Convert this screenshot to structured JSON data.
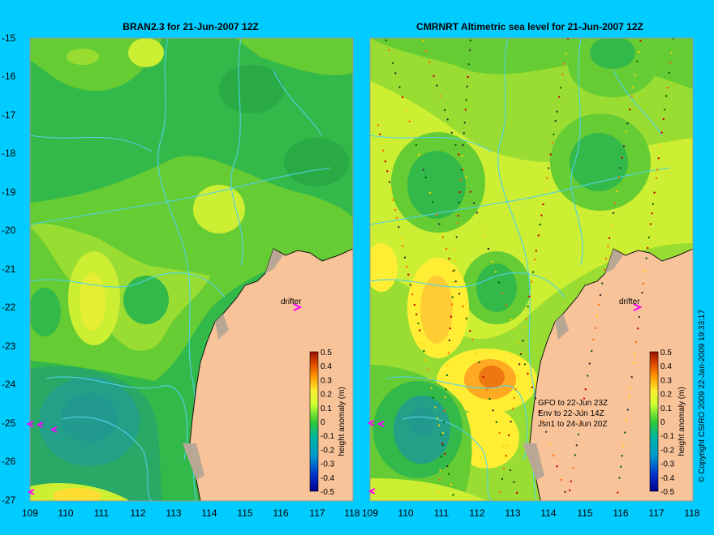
{
  "titles": {
    "left": "BRAN2.3  for 21-Jun-2007 12Z",
    "right": "CMRNRT Altimetric sea level  for 21-Jun-2007 12Z"
  },
  "axes": {
    "lat_ticks": [
      "-15",
      "-16",
      "-17",
      "-18",
      "-19",
      "-20",
      "-21",
      "-22",
      "-23",
      "-24",
      "-25",
      "-26",
      "-27"
    ],
    "lon_ticks": [
      "109",
      "110",
      "111",
      "112",
      "113",
      "114",
      "115",
      "116",
      "117",
      "118"
    ]
  },
  "labels": {
    "drifter": "drifter"
  },
  "colorbar": {
    "label": "height anomaly (m)",
    "ticks": [
      "0.5",
      "0.4",
      "0.3",
      "0.2",
      "0.1",
      "0",
      "-0.1",
      "-0.2",
      "-0.3",
      "-0.4",
      "-0.5"
    ]
  },
  "satellites": [
    "GFO to 22-Jun 23Z",
    "Env to 22-Jun 14Z",
    "Jsn1 to 24-Jun 20Z"
  ],
  "copyright": "© Copyright CSIRO 2009   22-Jan-2009 19:33:17",
  "colors": {
    "land": "#f9c39a",
    "background": "#00ccff",
    "contour": "#4fd2e8",
    "drifter": "#ff00ff"
  }
}
